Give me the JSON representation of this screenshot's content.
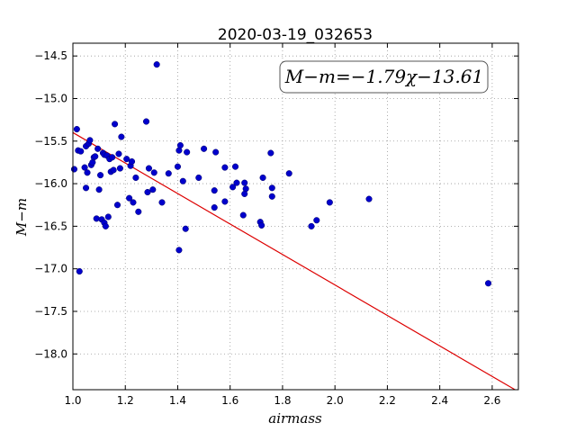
{
  "chart_data": {
    "type": "scatter",
    "title": "2020-03-19_032653",
    "xlabel": "airmass",
    "ylabel": "M−m",
    "xlim": [
      1.0,
      2.7
    ],
    "ylim": [
      -14.35,
      -18.42
    ],
    "y_inverted": true,
    "grid": true,
    "x_ticks": [
      1.0,
      1.2,
      1.4,
      1.6,
      1.8,
      2.0,
      2.2,
      2.4,
      2.6
    ],
    "x_tick_labels": [
      "1.0",
      "1.2",
      "1.4",
      "1.6",
      "1.8",
      "2.0",
      "2.2",
      "2.4",
      "2.6"
    ],
    "y_ticks": [
      -14.5,
      -15.0,
      -15.5,
      -16.0,
      -16.5,
      -17.0,
      -17.5,
      -18.0
    ],
    "y_tick_labels": [
      "−14.5",
      "−15.0",
      "−15.5",
      "−16.0",
      "−16.5",
      "−17.0",
      "−17.5",
      "−18.0"
    ],
    "annotation": "M−m=−1.79χ−13.61",
    "colors": {
      "points": "#0000cc",
      "fit": "#dd0000",
      "grid": "#999999"
    },
    "fit": {
      "slope": -1.79,
      "intercept": -13.61
    },
    "points": [
      [
        1.005,
        -15.83
      ],
      [
        1.015,
        -15.36
      ],
      [
        1.02,
        -15.61
      ],
      [
        1.025,
        -17.03
      ],
      [
        1.03,
        -15.62
      ],
      [
        1.045,
        -15.81
      ],
      [
        1.05,
        -15.56
      ],
      [
        1.05,
        -16.05
      ],
      [
        1.055,
        -15.87
      ],
      [
        1.06,
        -15.53
      ],
      [
        1.065,
        -15.49
      ],
      [
        1.07,
        -15.78
      ],
      [
        1.075,
        -15.75
      ],
      [
        1.08,
        -15.69
      ],
      [
        1.085,
        -15.68
      ],
      [
        1.09,
        -16.41
      ],
      [
        1.095,
        -15.59
      ],
      [
        1.1,
        -16.07
      ],
      [
        1.105,
        -15.9
      ],
      [
        1.11,
        -16.42
      ],
      [
        1.115,
        -15.64
      ],
      [
        1.12,
        -15.66
      ],
      [
        1.12,
        -16.46
      ],
      [
        1.125,
        -16.5
      ],
      [
        1.13,
        -15.67
      ],
      [
        1.135,
        -16.39
      ],
      [
        1.14,
        -15.71
      ],
      [
        1.145,
        -15.86
      ],
      [
        1.15,
        -15.69
      ],
      [
        1.155,
        -15.84
      ],
      [
        1.16,
        -15.3
      ],
      [
        1.17,
        -16.25
      ],
      [
        1.175,
        -15.65
      ],
      [
        1.18,
        -15.82
      ],
      [
        1.185,
        -15.45
      ],
      [
        1.205,
        -15.71
      ],
      [
        1.215,
        -16.17
      ],
      [
        1.22,
        -15.79
      ],
      [
        1.225,
        -15.74
      ],
      [
        1.23,
        -16.22
      ],
      [
        1.24,
        -15.93
      ],
      [
        1.25,
        -16.33
      ],
      [
        1.28,
        -15.27
      ],
      [
        1.285,
        -16.1
      ],
      [
        1.29,
        -15.82
      ],
      [
        1.305,
        -16.07
      ],
      [
        1.31,
        -15.87
      ],
      [
        1.32,
        -14.6
      ],
      [
        1.34,
        -16.22
      ],
      [
        1.365,
        -15.88
      ],
      [
        1.4,
        -15.8
      ],
      [
        1.405,
        -15.61
      ],
      [
        1.41,
        -15.55
      ],
      [
        1.405,
        -16.78
      ],
      [
        1.42,
        -15.97
      ],
      [
        1.435,
        -15.63
      ],
      [
        1.43,
        -16.53
      ],
      [
        1.48,
        -15.93
      ],
      [
        1.5,
        -15.59
      ],
      [
        1.54,
        -16.08
      ],
      [
        1.54,
        -16.28
      ],
      [
        1.545,
        -15.63
      ],
      [
        1.58,
        -15.81
      ],
      [
        1.58,
        -16.21
      ],
      [
        1.61,
        -16.04
      ],
      [
        1.62,
        -15.8
      ],
      [
        1.625,
        -15.99
      ],
      [
        1.65,
        -16.37
      ],
      [
        1.655,
        -15.99
      ],
      [
        1.66,
        -16.06
      ],
      [
        1.655,
        -16.12
      ],
      [
        1.715,
        -16.45
      ],
      [
        1.72,
        -16.49
      ],
      [
        1.725,
        -15.93
      ],
      [
        1.755,
        -15.64
      ],
      [
        1.76,
        -16.05
      ],
      [
        1.76,
        -16.15
      ],
      [
        1.825,
        -15.88
      ],
      [
        1.91,
        -16.5
      ],
      [
        1.93,
        -16.43
      ],
      [
        1.98,
        -16.22
      ],
      [
        2.13,
        -16.18
      ],
      [
        2.585,
        -17.17
      ]
    ]
  }
}
